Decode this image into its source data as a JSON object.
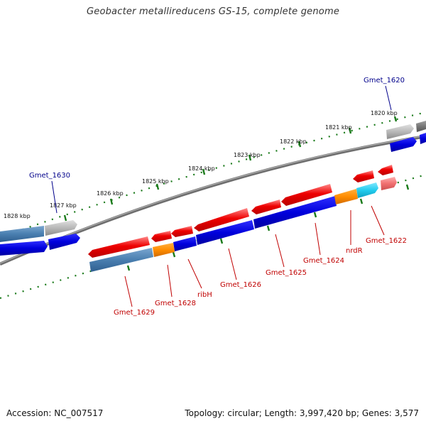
{
  "title": "Geobacter metallireducens GS-15, complete genome",
  "footer": {
    "accession": "Accession: NC_007517",
    "summary": "Topology: circular; Length: 3,997,420 bp; Genes: 3,577"
  },
  "scale_labels": [
    "1820 kbp",
    "1821 kbp",
    "1822 kbp",
    "1823 kbp",
    "1824 kbp",
    "1825 kbp",
    "1826 kbp",
    "1827 kbp",
    "1828 kbp"
  ],
  "gene_labels": {
    "gmet_1620": "Gmet_1620",
    "gmet_1630": "Gmet_1630",
    "gmet_1629": "Gmet_1629",
    "gmet_1628": "Gmet_1628",
    "ribH": "ribH",
    "gmet_1626": "Gmet_1626",
    "gmet_1625": "Gmet_1625",
    "gmet_1624": "Gmet_1624",
    "nrdR": "nrdR",
    "gmet_1622": "Gmet_1622"
  },
  "colors": {
    "red_gene": "#e8000b",
    "blue_gene": "#0000dd",
    "steelblue_gene": "#4a7fb0",
    "orange_gene": "#ff8c00",
    "cyan_gene": "#22ccee",
    "gray_gene": "#b8b8b8",
    "darkgray_gene": "#777777",
    "pink_gene": "#f07070",
    "backbone": "#808080",
    "ticks": "#1a7a1a",
    "label_red": "#c00000",
    "label_blue": "#00008b"
  }
}
